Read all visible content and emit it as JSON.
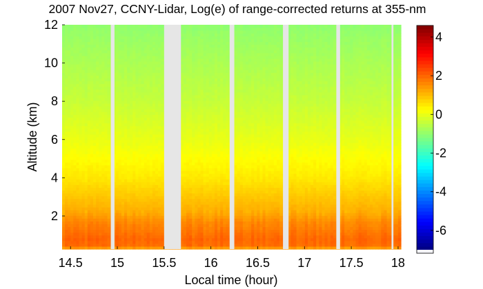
{
  "chart_data": {
    "type": "heatmap",
    "title": "2007 Nov27, CCNY-Lidar, Log(e) of range-corrected returns at 355-nm",
    "xlabel": "Local time (hour)",
    "ylabel": "Altitude (km)",
    "xlim": [
      14.41,
      18.03
    ],
    "ylim": [
      0.27,
      12
    ],
    "xticks": [
      "14.5",
      "15",
      "15.5",
      "16",
      "16.5",
      "17",
      "17.5",
      "18"
    ],
    "xtick_values": [
      14.5,
      15,
      15.5,
      16,
      16.5,
      17,
      17.5,
      18
    ],
    "yticks": [
      "2",
      "4",
      "6",
      "8",
      "10",
      "12"
    ],
    "ytick_values": [
      2,
      4,
      6,
      8,
      10,
      12
    ],
    "colormap": "jet",
    "clim": [
      -7,
      4.6
    ],
    "colorbar_ticks": [
      "4",
      "2",
      "0",
      "-2",
      "-4",
      "-6"
    ],
    "colorbar_tick_values": [
      4,
      2,
      0,
      -2,
      -4,
      -6
    ],
    "data_gaps_hours": [
      [
        14.93,
        14.97
      ],
      [
        15.5,
        15.68
      ],
      [
        16.2,
        16.25
      ],
      [
        16.77,
        16.83
      ],
      [
        17.34,
        17.38
      ],
      [
        17.93,
        17.95
      ]
    ],
    "gap_color": "#e6e6e6",
    "mean_profile": {
      "altitude_km": [
        0.27,
        0.45,
        0.8,
        1.2,
        1.7,
        2.2,
        3,
        4,
        6,
        8,
        10,
        12
      ],
      "value": [
        1.1,
        1.9,
        2.0,
        1.8,
        1.6,
        1.2,
        0.9,
        0.5,
        0.0,
        -0.4,
        -0.7,
        -1.0
      ]
    }
  }
}
